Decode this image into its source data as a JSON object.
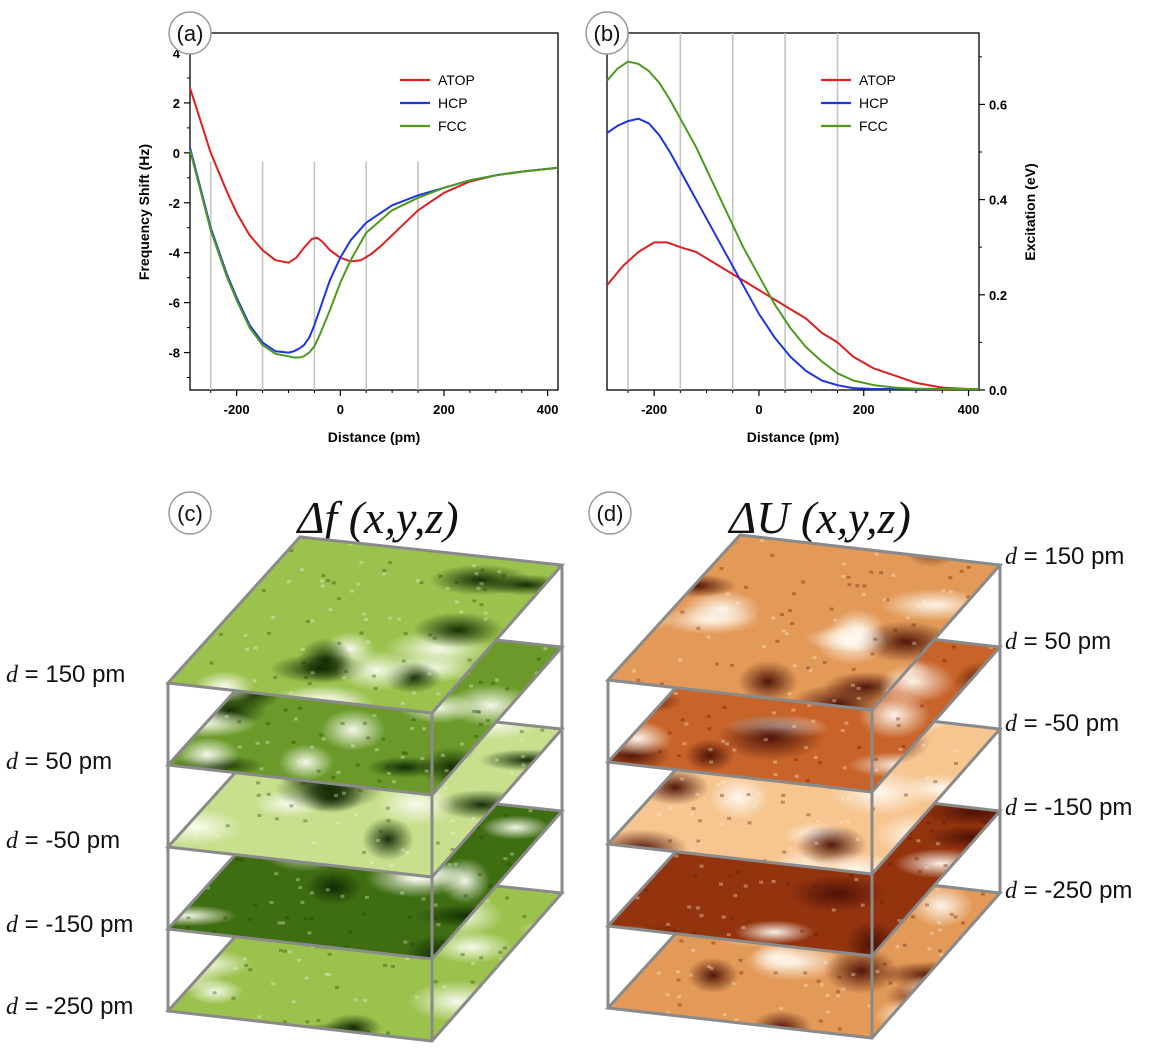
{
  "chart_data": [
    {
      "panel_label": "(a)",
      "type": "line",
      "xlabel": "Distance (pm)",
      "ylabel": "Frequency Shift (Hz)",
      "xlim": [
        -290,
        420
      ],
      "ylim": [
        -9.5,
        4.8
      ],
      "xticks": [
        -200,
        0,
        200,
        400
      ],
      "xtick_labels": [
        "-200",
        "0",
        "200",
        "400"
      ],
      "yticks": [
        4,
        2,
        0,
        -2,
        -4,
        -6,
        -8
      ],
      "ytick_labels": [
        "4",
        "2",
        "0",
        "-2",
        "-4",
        "-6",
        "-8"
      ],
      "yaxis_side": "left",
      "vlines": [
        -250,
        -150,
        -50,
        50,
        150
      ],
      "legend_position": "top-right",
      "series": [
        {
          "name": "ATOP",
          "color": "#dd1f1f",
          "x": [
            -290,
            -270,
            -250,
            -220,
            -200,
            -175,
            -150,
            -125,
            -100,
            -85,
            -70,
            -55,
            -45,
            -35,
            -20,
            0,
            20,
            40,
            60,
            80,
            100,
            150,
            200,
            250,
            300,
            350,
            420
          ],
          "y": [
            2.6,
            1.3,
            0.0,
            -1.5,
            -2.4,
            -3.3,
            -3.9,
            -4.3,
            -4.4,
            -4.2,
            -3.8,
            -3.45,
            -3.4,
            -3.55,
            -3.9,
            -4.2,
            -4.35,
            -4.3,
            -4.05,
            -3.7,
            -3.3,
            -2.3,
            -1.6,
            -1.15,
            -0.9,
            -0.75,
            -0.6
          ]
        },
        {
          "name": "HCP",
          "color": "#1f35e0",
          "x": [
            -290,
            -270,
            -250,
            -220,
            -200,
            -175,
            -150,
            -125,
            -100,
            -90,
            -80,
            -70,
            -60,
            -50,
            -40,
            -20,
            0,
            20,
            50,
            100,
            150,
            200,
            250,
            300,
            350,
            420
          ],
          "y": [
            0.2,
            -1.4,
            -3.0,
            -4.8,
            -5.8,
            -6.9,
            -7.6,
            -7.95,
            -8.0,
            -7.95,
            -7.85,
            -7.7,
            -7.4,
            -6.9,
            -6.3,
            -5.1,
            -4.2,
            -3.5,
            -2.8,
            -2.1,
            -1.7,
            -1.4,
            -1.1,
            -0.9,
            -0.75,
            -0.6
          ]
        },
        {
          "name": "FCC",
          "color": "#4d9a1f",
          "x": [
            -290,
            -270,
            -250,
            -220,
            -200,
            -175,
            -150,
            -125,
            -100,
            -90,
            -80,
            -70,
            -60,
            -50,
            -40,
            -30,
            -20,
            0,
            20,
            50,
            100,
            150,
            200,
            250,
            300,
            350,
            420
          ],
          "y": [
            0.1,
            -1.5,
            -3.1,
            -4.9,
            -5.9,
            -7.0,
            -7.7,
            -8.05,
            -8.15,
            -8.2,
            -8.2,
            -8.15,
            -8.0,
            -7.75,
            -7.3,
            -6.8,
            -6.3,
            -5.2,
            -4.3,
            -3.2,
            -2.3,
            -1.8,
            -1.4,
            -1.1,
            -0.9,
            -0.75,
            -0.6
          ]
        }
      ]
    },
    {
      "panel_label": "(b)",
      "type": "line",
      "xlabel": "Distance (pm)",
      "ylabel": "Excitation (eV)",
      "xlim": [
        -290,
        420
      ],
      "ylim": [
        0,
        0.75
      ],
      "xticks": [
        -200,
        0,
        200,
        400
      ],
      "xtick_labels": [
        "-200",
        "0",
        "200",
        "400"
      ],
      "yticks": [
        0.0,
        0.2,
        0.4,
        0.6
      ],
      "ytick_labels": [
        "0.0",
        "0.2",
        "0.4",
        "0.6"
      ],
      "yaxis_side": "right",
      "vlines": [
        -250,
        -150,
        -50,
        50,
        150
      ],
      "legend_position": "top-right",
      "series": [
        {
          "name": "ATOP",
          "color": "#dd1f1f",
          "x": [
            -290,
            -260,
            -230,
            -200,
            -175,
            -150,
            -120,
            -90,
            -60,
            -30,
            0,
            30,
            60,
            90,
            120,
            150,
            180,
            220,
            260,
            300,
            350,
            400,
            420
          ],
          "y": [
            0.22,
            0.26,
            0.29,
            0.31,
            0.31,
            0.3,
            0.29,
            0.27,
            0.25,
            0.23,
            0.21,
            0.19,
            0.17,
            0.15,
            0.12,
            0.1,
            0.07,
            0.045,
            0.03,
            0.015,
            0.005,
            0.002,
            0.002
          ]
        },
        {
          "name": "HCP",
          "color": "#1f35e0",
          "x": [
            -290,
            -270,
            -250,
            -230,
            -210,
            -190,
            -170,
            -150,
            -120,
            -90,
            -60,
            -30,
            0,
            30,
            60,
            90,
            120,
            150,
            180,
            220,
            260,
            300,
            350,
            420
          ],
          "y": [
            0.54,
            0.555,
            0.565,
            0.57,
            0.56,
            0.535,
            0.5,
            0.46,
            0.4,
            0.34,
            0.28,
            0.22,
            0.16,
            0.11,
            0.07,
            0.04,
            0.02,
            0.01,
            0.004,
            0.002,
            0.002,
            0.002,
            0.002,
            0.002
          ]
        },
        {
          "name": "FCC",
          "color": "#4d9a1f",
          "x": [
            -290,
            -270,
            -250,
            -230,
            -210,
            -190,
            -170,
            -150,
            -120,
            -90,
            -60,
            -30,
            0,
            30,
            60,
            90,
            120,
            150,
            180,
            220,
            260,
            300,
            350,
            420
          ],
          "y": [
            0.65,
            0.675,
            0.69,
            0.685,
            0.67,
            0.645,
            0.61,
            0.57,
            0.51,
            0.44,
            0.37,
            0.3,
            0.24,
            0.18,
            0.13,
            0.09,
            0.06,
            0.035,
            0.02,
            0.01,
            0.005,
            0.003,
            0.002,
            0.002
          ]
        }
      ]
    }
  ],
  "panels": {
    "c": {
      "label": "(c)",
      "title": "Δf (x,y,z)",
      "color_scheme": "green"
    },
    "d": {
      "label": "(d)",
      "title": "ΔU (x,y,z)",
      "color_scheme": "orange"
    }
  },
  "depth_labels": {
    "var": "d",
    "eq": " = ",
    "values": [
      "150 pm",
      "50 pm",
      "-50 pm",
      "-150 pm",
      "-250 pm"
    ]
  },
  "colors": {
    "green_light": "#f2f8e2",
    "green_dark": "#1a3d04",
    "orange_light": "#fff3e4",
    "orange_dark": "#5a1605",
    "frame": "#8a8a8a",
    "vline": "#c4c4c4"
  }
}
